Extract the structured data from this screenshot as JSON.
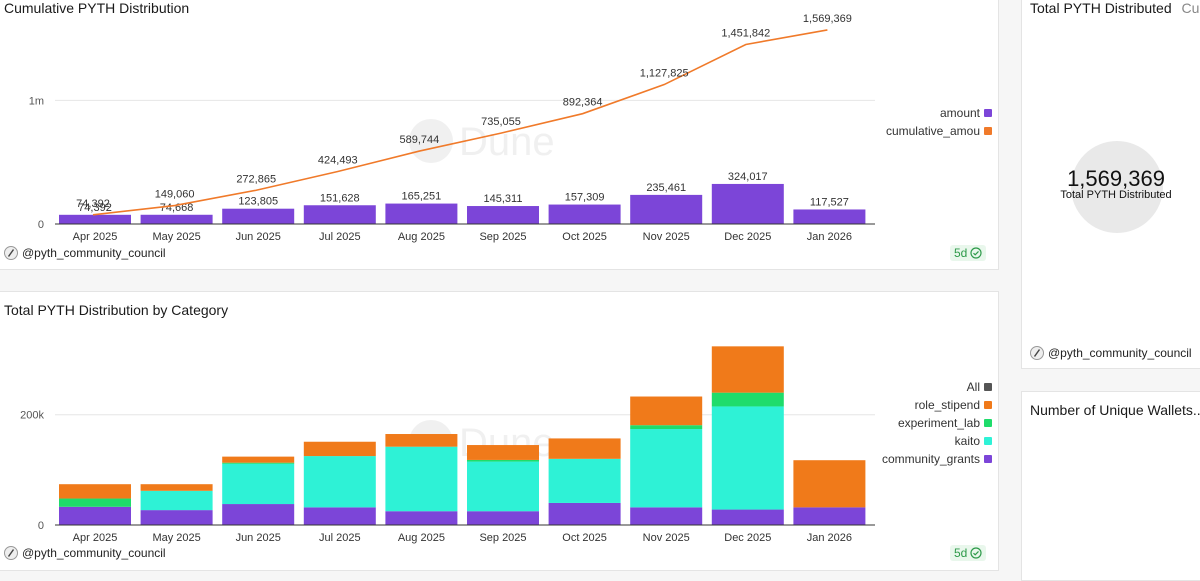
{
  "author": "@pyth_community_council",
  "refresh": "5d",
  "watermark": "Dune",
  "colors": {
    "amount": "#7c45d8",
    "cumulative": "#f07a2a",
    "community_grants": "#7c45d8",
    "kaito": "#2ef2d6",
    "experiment_lab": "#1fdc6b",
    "role_stipend": "#f07a1a",
    "all": "#555555"
  },
  "chart_data": [
    {
      "type": "bar",
      "title": "Cumulative PYTH Distribution",
      "categories": [
        "Apr 2025",
        "May 2025",
        "Jun 2025",
        "Jul 2025",
        "Aug 2025",
        "Sep 2025",
        "Oct 2025",
        "Nov 2025",
        "Dec 2025",
        "Jan 2026"
      ],
      "series": [
        {
          "name": "amount",
          "type": "bar",
          "values": [
            74392,
            74668,
            123805,
            151628,
            165251,
            145311,
            157309,
            235461,
            324017,
            117527
          ],
          "labels": [
            "74,392",
            "74,668",
            "123,805",
            "151,628",
            "165,251",
            "145,311",
            "157,309",
            "235,461",
            "324,017",
            "117,527"
          ]
        },
        {
          "name": "cumulative_amount",
          "legend_label": "cumulative_amou",
          "type": "line",
          "values": [
            74392,
            149060,
            272865,
            424493,
            589744,
            735055,
            892364,
            1127825,
            1451842,
            1569369
          ],
          "labels": [
            "74,392",
            "149,060",
            "272,865",
            "424,493",
            "589,744",
            "735,055",
            "892,364",
            "1,127,825",
            "1,451,842",
            "1,569,369"
          ]
        }
      ],
      "yticks": [
        "0",
        "1m"
      ],
      "ytick_values": [
        0,
        1000000
      ],
      "ylim": [
        0,
        1650000
      ],
      "legend": "right"
    },
    {
      "type": "bar",
      "stacked": true,
      "title": "Total PYTH Distribution by Category",
      "categories": [
        "Apr 2025",
        "May 2025",
        "Jun 2025",
        "Jul 2025",
        "Aug 2025",
        "Sep 2025",
        "Oct 2025",
        "Nov 2025",
        "Dec 2025",
        "Jan 2026"
      ],
      "series": [
        {
          "name": "community_grants",
          "values": [
            33000,
            27000,
            38000,
            32000,
            25000,
            25000,
            40000,
            32000,
            28000,
            32000
          ]
        },
        {
          "name": "kaito",
          "values": [
            0,
            35000,
            73000,
            93000,
            117000,
            90000,
            80000,
            142000,
            187000,
            0
          ]
        },
        {
          "name": "experiment_lab",
          "values": [
            15000,
            0,
            2000,
            0,
            0,
            3000,
            0,
            7000,
            25000,
            0
          ]
        },
        {
          "name": "role_stipend",
          "values": [
            26000,
            12000,
            11000,
            26000,
            23000,
            27000,
            37000,
            52000,
            84000,
            85500
          ]
        }
      ],
      "legend_entries": [
        "All",
        "role_stipend",
        "experiment_lab",
        "kaito",
        "community_grants"
      ],
      "yticks": [
        "0",
        "200k"
      ],
      "ytick_values": [
        0,
        200000
      ],
      "ylim": [
        0,
        350000
      ],
      "legend": "right"
    }
  ],
  "counter": {
    "title": "Total PYTH Distributed",
    "title_extra": "Cu",
    "value": "1,569,369",
    "label": "Total PYTH Distributed"
  },
  "wallets": {
    "title": "Number of Unique Wallets..."
  }
}
